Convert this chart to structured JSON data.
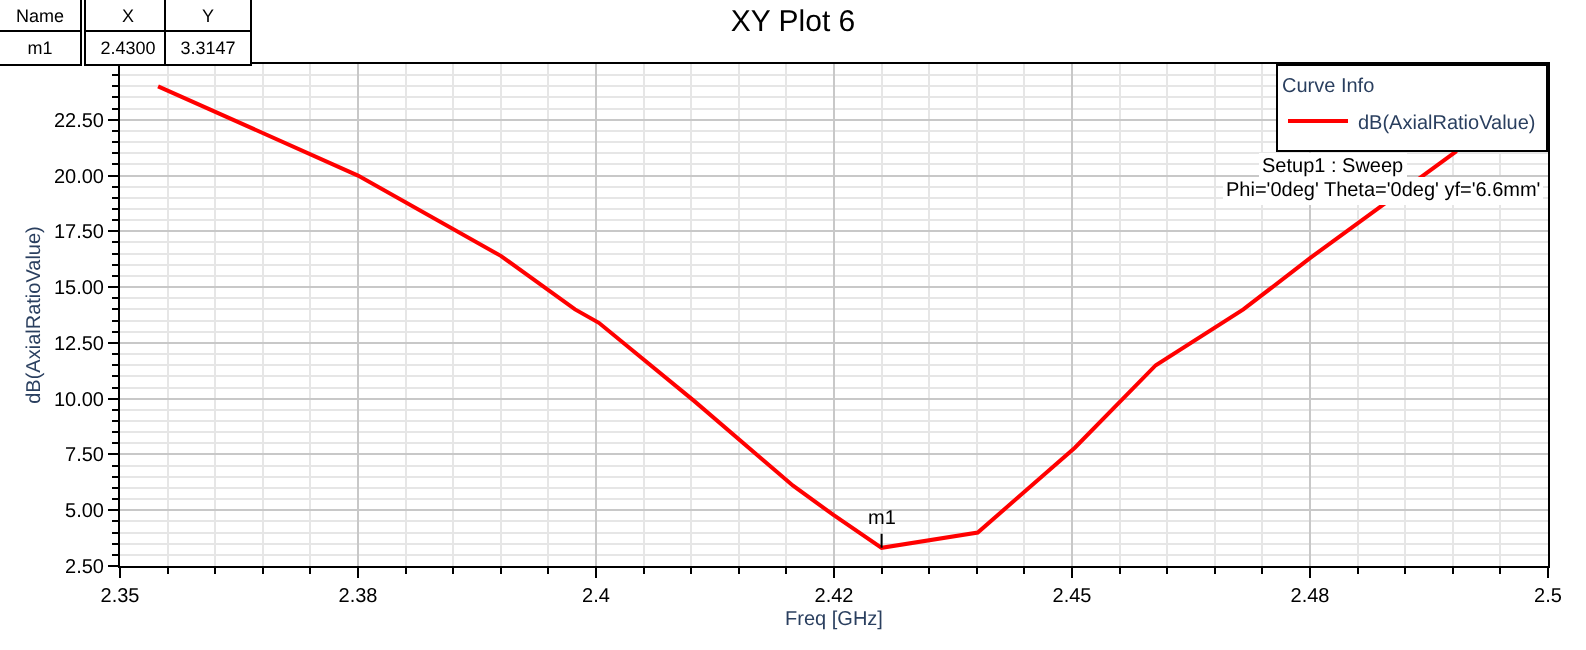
{
  "chart_data": {
    "type": "line",
    "title": "XY Plot 6",
    "xlabel": "Freq [GHz]",
    "ylabel": "dB(AxialRatioValue)",
    "legend_title": "Curve Info",
    "x": [
      2.354,
      2.375,
      2.39,
      2.3978,
      2.4003,
      2.4103,
      2.4207,
      2.4249,
      2.43,
      2.4401,
      2.4503,
      2.4588,
      2.468,
      2.475,
      2.4904
    ],
    "series": [
      {
        "name": "dB(AxialRatioValue)",
        "color": "#ff0000",
        "values": [
          24.0,
          20.0,
          16.4,
          14.0,
          13.4,
          9.9,
          6.1,
          4.8,
          3.3147,
          4.0,
          7.8,
          11.5,
          14.0,
          16.3,
          21.1
        ]
      }
    ],
    "annotations": [
      "Setup1 : Sweep",
      "Phi='0deg' Theta='0deg' yf='6.6mm'",
      "Name",
      "X",
      "Y",
      "m1",
      "2.4300",
      "3.3147",
      {
        "text": "m1",
        "x": 2.43,
        "y": 3.3147
      }
    ],
    "xlim": [
      2.35,
      2.5
    ],
    "ylim": [
      2.5,
      25
    ],
    "xticks": [
      2.35,
      {
        "value": 2.375,
        "label": "2.38"
      },
      2.4,
      {
        "value": 2.425,
        "label": "2.42"
      },
      2.45,
      {
        "value": 2.475,
        "label": "2.48"
      },
      2.5
    ],
    "yticks": [
      {
        "value": 2.5,
        "label": "2.50"
      },
      {
        "value": 5,
        "label": "5.00"
      },
      {
        "value": 7.5,
        "label": "7.50"
      },
      {
        "value": 10,
        "label": "10.00"
      },
      {
        "value": 12.5,
        "label": "12.50"
      },
      {
        "value": 15,
        "label": "15.00"
      },
      {
        "value": 17.5,
        "label": "17.50"
      },
      {
        "value": 20,
        "label": "20.00"
      },
      {
        "value": 22.5,
        "label": "22.50"
      }
    ],
    "grid": true,
    "legend": "top right",
    "marker": "none",
    "line_style": "solid"
  }
}
